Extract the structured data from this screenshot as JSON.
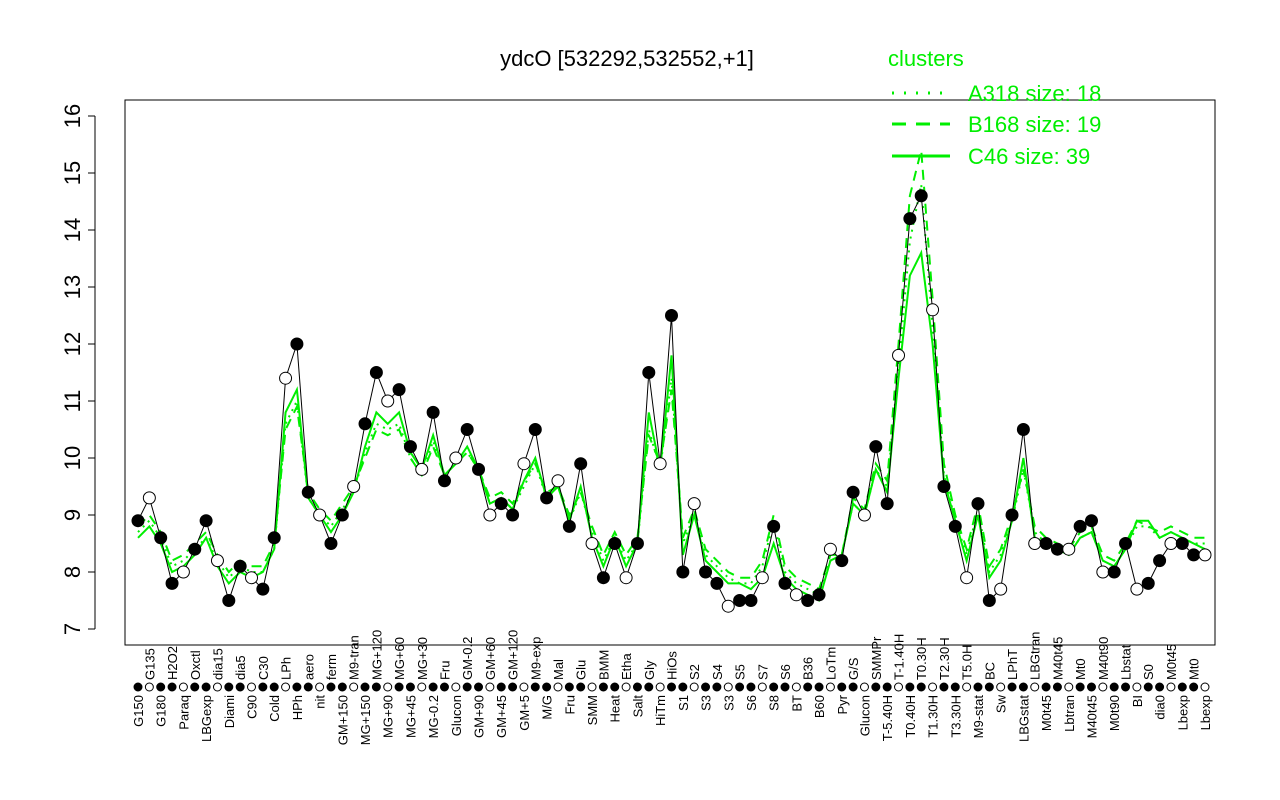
{
  "chart_data": {
    "type": "line",
    "title": "ydcO [532292,532552,+1]",
    "xlabel": "",
    "ylabel": "",
    "ylim": [
      7,
      16
    ],
    "yticks": [
      7,
      8,
      9,
      10,
      11,
      12,
      13,
      14,
      15,
      16
    ],
    "legend": {
      "title": "clusters",
      "placement": "top-right",
      "entries": [
        "A318 size: 18",
        "B168 size: 19",
        "C46 size: 39"
      ]
    },
    "colors": {
      "series": "#00ee00",
      "points": "#000000"
    },
    "categories": [
      "G150",
      "G135",
      "G180",
      "H2O2",
      "Paraq",
      "Oxctl",
      "LBGexp",
      "dia15",
      "Diami",
      "dia5",
      "C90",
      "C30",
      "Cold",
      "LPh",
      "HPh",
      "aero",
      "nit",
      "ferm",
      "GM+150",
      "M9-tran",
      "MG+150",
      "MG+120",
      "MG+90",
      "MG+60",
      "MG+45",
      "MG+30",
      "MG-0.2",
      "Fru",
      "Glucon",
      "GM-0.2",
      "GM+90",
      "GM+60",
      "GM+45",
      "GM+120",
      "GM+5",
      "M9-exp",
      "M/G",
      "Mal",
      "Fru",
      "Glu",
      "SMM",
      "BMM",
      "Heat",
      "Etha",
      "Salt",
      "Gly",
      "HiTm",
      "HiOs",
      "S1",
      "S2",
      "S3",
      "S4",
      "S3",
      "S5",
      "S6",
      "S7",
      "S8",
      "S6",
      "BT",
      "B36",
      "B60",
      "LoTm",
      "Pyr",
      "G/S",
      "Glucon",
      "SMMPr",
      "T-5.40H",
      "T-1.40H",
      "T0.40H",
      "T0.30H",
      "T1.30H",
      "T2.30H",
      "T3.30H",
      "T5.0H",
      "M9-stat",
      "BC",
      "Sw",
      "LPhT",
      "LBGstat",
      "LBGtran",
      "M0t45",
      "M40t45",
      "Lbtran",
      "Mt0",
      "M40t45",
      "M40t90",
      "M0t90",
      "Lbstat",
      "BI",
      "S0",
      "dia0",
      "M0t45",
      "Lbexp",
      "Mt0",
      "Lbexp"
    ],
    "values": [
      8.9,
      9.3,
      8.6,
      7.8,
      8.0,
      8.4,
      8.9,
      8.2,
      7.5,
      8.1,
      7.9,
      7.7,
      8.6,
      11.4,
      12.0,
      9.4,
      9.0,
      8.5,
      9.0,
      9.5,
      10.6,
      11.5,
      11.0,
      11.2,
      10.2,
      9.8,
      10.8,
      9.6,
      10.0,
      10.5,
      9.8,
      9.0,
      9.2,
      9.0,
      9.9,
      10.5,
      9.3,
      9.6,
      8.8,
      9.9,
      8.5,
      7.9,
      8.5,
      7.9,
      8.5,
      11.5,
      9.9,
      12.5,
      8.0,
      9.2,
      8.0,
      7.8,
      7.4,
      7.5,
      7.5,
      7.9,
      8.8,
      7.8,
      7.6,
      7.5,
      7.6,
      8.4,
      8.2,
      9.4,
      9.0,
      10.2,
      9.2,
      11.8,
      14.2,
      14.6,
      12.6,
      9.5,
      8.8,
      7.9,
      9.2,
      7.5,
      7.7,
      9.0,
      10.5,
      8.5,
      8.5,
      8.4,
      8.4,
      8.8,
      8.9,
      8.0,
      8.0,
      8.5,
      7.7,
      7.8,
      8.2,
      8.5,
      8.5,
      8.3,
      8.3
    ],
    "series": [
      {
        "name": "C46",
        "style": "solid",
        "values": [
          8.6,
          8.8,
          8.5,
          8.0,
          8.1,
          8.3,
          8.6,
          8.1,
          7.8,
          8.0,
          7.9,
          8.0,
          8.4,
          10.8,
          11.2,
          9.3,
          9.0,
          8.7,
          9.0,
          9.4,
          10.2,
          10.8,
          10.6,
          10.8,
          10.1,
          9.8,
          10.4,
          9.7,
          9.9,
          10.2,
          9.8,
          9.2,
          9.3,
          9.1,
          9.6,
          10.0,
          9.3,
          9.5,
          8.9,
          9.5,
          8.6,
          8.1,
          8.6,
          8.1,
          8.5,
          10.8,
          9.8,
          11.8,
          8.3,
          9.0,
          8.2,
          8.0,
          7.8,
          7.8,
          7.7,
          7.9,
          8.5,
          7.9,
          7.7,
          7.6,
          7.5,
          8.2,
          8.3,
          9.2,
          9.0,
          9.8,
          9.4,
          11.4,
          13.2,
          13.6,
          12.0,
          9.6,
          8.9,
          8.2,
          9.0,
          7.9,
          8.2,
          8.9,
          10.0,
          8.6,
          8.5,
          8.4,
          8.3,
          8.6,
          8.7,
          8.2,
          8.1,
          8.4,
          8.9,
          8.9,
          8.6,
          8.7,
          8.6,
          8.5,
          8.4
        ]
      },
      {
        "name": "B168",
        "style": "dashed",
        "values": [
          8.8,
          9.0,
          8.7,
          8.2,
          8.3,
          8.5,
          8.7,
          8.3,
          8.0,
          8.2,
          8.1,
          8.1,
          8.5,
          10.5,
          10.9,
          9.4,
          9.1,
          8.9,
          9.2,
          9.5,
          10.0,
          10.5,
          10.4,
          10.5,
          10.0,
          9.7,
          10.2,
          9.7,
          9.9,
          10.1,
          9.8,
          9.3,
          9.4,
          9.2,
          9.6,
          9.9,
          9.4,
          9.5,
          9.0,
          9.4,
          8.8,
          8.3,
          8.7,
          8.3,
          8.6,
          10.4,
          9.9,
          11.2,
          8.6,
          9.1,
          8.4,
          8.2,
          8.0,
          7.9,
          7.9,
          8.2,
          9.0,
          8.1,
          7.9,
          7.8,
          7.7,
          8.3,
          8.3,
          9.3,
          9.1,
          9.9,
          9.6,
          12.0,
          14.6,
          15.4,
          12.8,
          9.9,
          9.0,
          8.4,
          9.2,
          8.1,
          8.4,
          9.0,
          9.8,
          8.8,
          8.6,
          8.5,
          8.4,
          8.7,
          8.8,
          8.3,
          8.2,
          8.5,
          8.9,
          8.8,
          8.7,
          8.8,
          8.7,
          8.6,
          8.6
        ]
      },
      {
        "name": "A318",
        "style": "dotted",
        "values": [
          8.7,
          8.9,
          8.6,
          8.1,
          8.2,
          8.4,
          8.6,
          8.2,
          7.9,
          8.1,
          8.0,
          8.0,
          8.4,
          10.6,
          11.0,
          9.3,
          9.0,
          8.8,
          9.1,
          9.4,
          10.1,
          10.6,
          10.5,
          10.6,
          10.0,
          9.7,
          10.3,
          9.7,
          9.9,
          10.1,
          9.8,
          9.2,
          9.3,
          9.1,
          9.5,
          9.9,
          9.3,
          9.5,
          8.9,
          9.4,
          8.7,
          8.2,
          8.6,
          8.2,
          8.5,
          10.5,
          9.8,
          11.4,
          8.5,
          9.0,
          8.3,
          8.1,
          7.9,
          7.8,
          7.8,
          8.1,
          8.9,
          8.0,
          7.8,
          7.7,
          7.6,
          8.2,
          8.3,
          9.2,
          9.0,
          9.8,
          9.5,
          11.6,
          13.8,
          14.8,
          12.3,
          9.7,
          8.9,
          8.3,
          9.1,
          8.0,
          8.3,
          8.9,
          9.8,
          8.7,
          8.5,
          8.4,
          8.3,
          8.6,
          8.7,
          8.2,
          8.1,
          8.4,
          8.8,
          8.8,
          8.6,
          8.7,
          8.6,
          8.5,
          8.5
        ]
      }
    ]
  }
}
